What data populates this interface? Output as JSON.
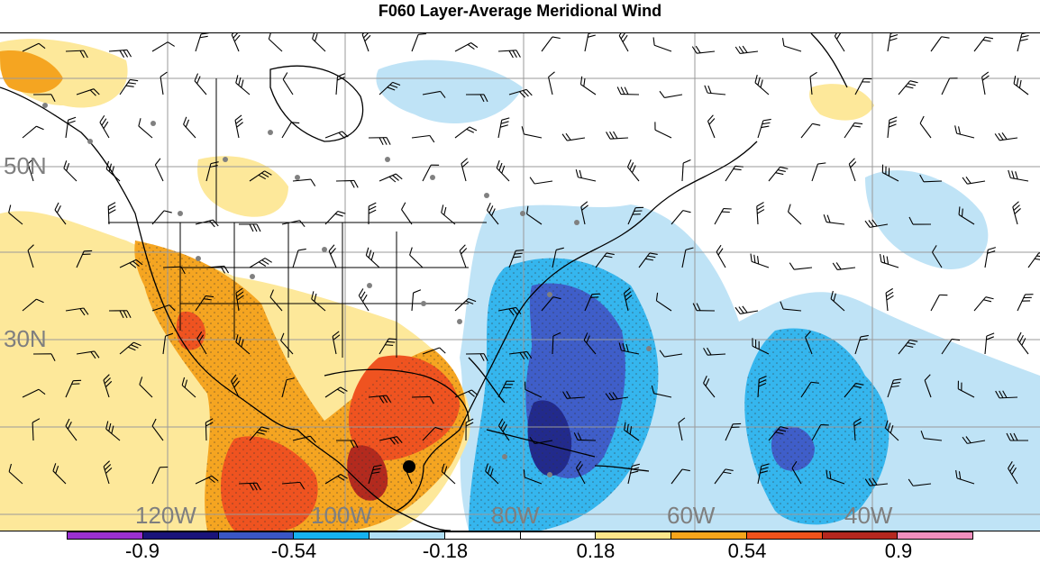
{
  "title": "F060 Layer-Average Meridional Wind",
  "map": {
    "lat_labels": [
      "50N",
      "30N"
    ],
    "lon_labels": [
      "120W",
      "100W",
      "80W",
      "60W",
      "40W"
    ],
    "colorbar": {
      "colors": [
        "#9b30d0",
        "#1a137a",
        "#3a56c4",
        "#16b2ef",
        "#b0dff5",
        "#ffffff",
        "#ffffff",
        "#fde68a",
        "#f7a51b",
        "#f0521b",
        "#b5271f",
        "#f28fbd"
      ],
      "labels": [
        "-0.9",
        "-0.54",
        "-0.18",
        "0.18",
        "0.54",
        "0.9"
      ]
    },
    "shade_colors": {
      "neg_light": "#bfe3f6",
      "neg_mid": "#35b6ee",
      "neg_strong": "#3f5ec9",
      "neg_max": "#222a8c",
      "pos_light": "#fde89a",
      "pos_mid": "#f5a521",
      "pos_strong": "#ef5320",
      "pos_max": "#b32a1e"
    }
  }
}
